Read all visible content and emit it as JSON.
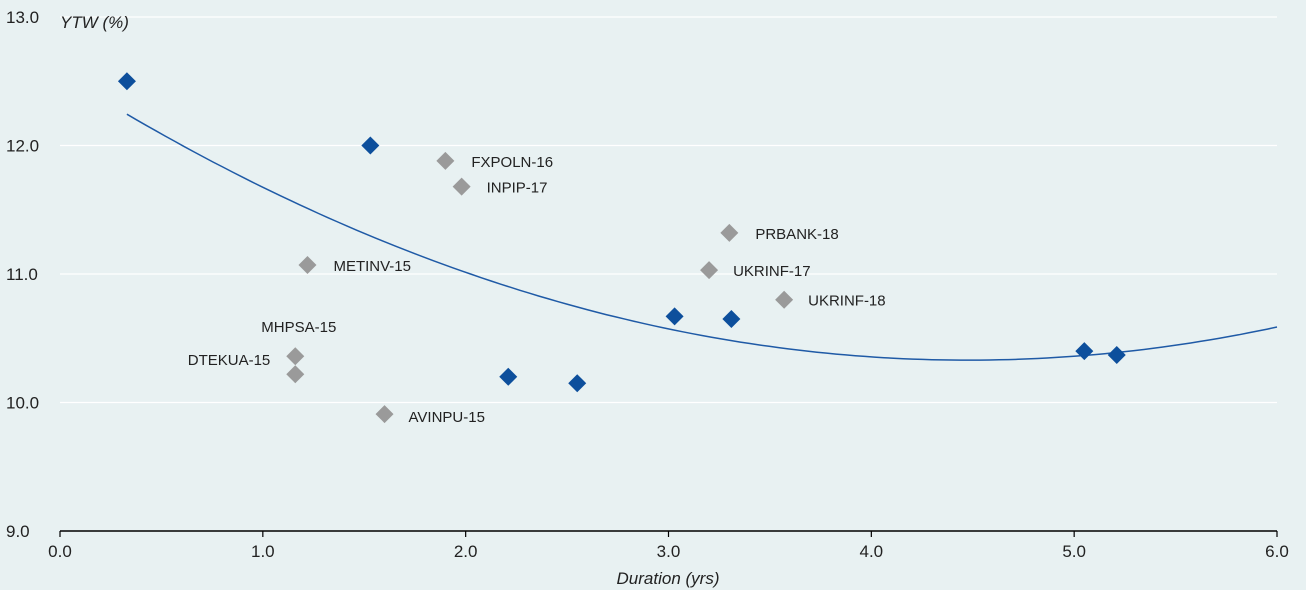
{
  "chart_data": {
    "type": "scatter",
    "title": "",
    "xlabel": "Duration (yrs)",
    "ylabel": "YTW (%)",
    "xlim": [
      0,
      6
    ],
    "ylim": [
      9,
      13
    ],
    "x_ticks": [
      "0.0",
      "1.0",
      "2.0",
      "3.0",
      "4.0",
      "5.0",
      "6.0"
    ],
    "y_ticks": [
      "9.0",
      "10.0",
      "11.0",
      "12.0",
      "13.0"
    ],
    "grid": "horizontal",
    "legend": "none",
    "colors": {
      "background": "#e8f1f2",
      "blue_series": "#0d4f9c",
      "gray_series": "#9a9a9a",
      "trend_line": "#1f5aa6",
      "grid": "#ffffff"
    },
    "series": [
      {
        "color_key": "blue_series",
        "points": [
          {
            "x": 0.33,
            "y": 12.5
          },
          {
            "x": 1.53,
            "y": 12.0
          },
          {
            "x": 2.21,
            "y": 10.2
          },
          {
            "x": 2.55,
            "y": 10.15
          },
          {
            "x": 3.03,
            "y": 10.67
          },
          {
            "x": 3.31,
            "y": 10.65
          },
          {
            "x": 5.05,
            "y": 10.4
          },
          {
            "x": 5.21,
            "y": 10.37
          }
        ]
      },
      {
        "color_key": "gray_series",
        "points": [
          {
            "x": 1.9,
            "y": 11.88,
            "label": "FXPOLN-16"
          },
          {
            "x": 1.98,
            "y": 11.68,
            "label": "INPIP-17"
          },
          {
            "x": 3.3,
            "y": 11.32,
            "label": "PRBANK-18"
          },
          {
            "x": 1.22,
            "y": 11.07,
            "label": "METINV-15"
          },
          {
            "x": 3.2,
            "y": 11.03,
            "label": "UKRINF-17"
          },
          {
            "x": 3.57,
            "y": 10.8,
            "label": "UKRINF-18"
          },
          {
            "x": 1.16,
            "y": 10.36,
            "label": "MHPSA-15"
          },
          {
            "x": 1.16,
            "y": 10.22,
            "label": "DTEKUA-15"
          },
          {
            "x": 1.6,
            "y": 9.91,
            "label": "AVINPU-15"
          }
        ]
      }
    ],
    "trendline": {
      "type": "polynomial",
      "coefficients": [
        12.56,
        -0.996,
        0.1112
      ],
      "x_range": [
        0.33,
        6.0
      ]
    }
  }
}
